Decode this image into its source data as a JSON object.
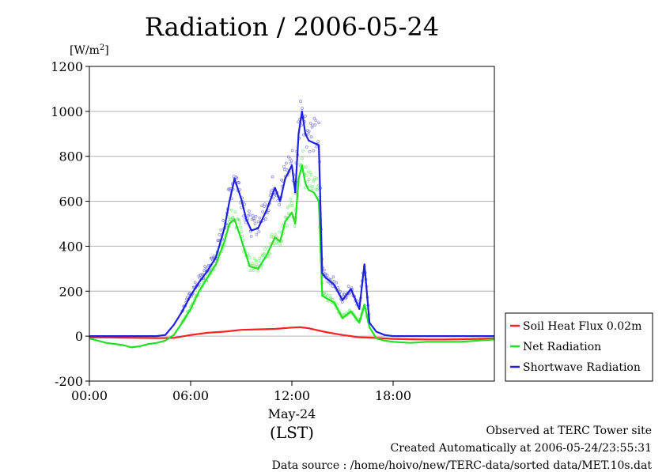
{
  "colors": {
    "soil_heat_flux": "#ff2020",
    "net_radiation": "#22e022",
    "shortwave_radiation": "#2020e0",
    "shortwave_scatter": "#8080ee",
    "net_scatter": "#80ee80",
    "grid": "#b0b0b0"
  },
  "chart_data": {
    "type": "line",
    "title": "Radiation / 2006-05-24",
    "ylabel_unit": "[W/m",
    "ylabel_sup": "2",
    "ylabel_close": "]",
    "xlabel_date": "May-24",
    "xlabel_tz": "(LST)",
    "ylim": [
      -200,
      1200
    ],
    "xlim_hours": [
      0,
      24
    ],
    "y_ticks": [
      "-200",
      "0",
      "200",
      "400",
      "600",
      "800",
      "1000",
      "1200"
    ],
    "y_tick_values": [
      -200,
      0,
      200,
      400,
      600,
      800,
      1000,
      1200
    ],
    "x_ticks": [
      "00:00",
      "06:00",
      "12:00",
      "18:00"
    ],
    "x_tick_values": [
      0,
      6,
      12,
      18
    ],
    "grid": true,
    "legend_position": "right",
    "series": [
      {
        "name": "Soil Heat Flux 0.02m",
        "x_hours": [
          0,
          1,
          2,
          3,
          4,
          5,
          6,
          7,
          8,
          9,
          10,
          11,
          12,
          12.5,
          13,
          14,
          15,
          16,
          17,
          18,
          19,
          20,
          21,
          22,
          23,
          24
        ],
        "values": [
          -5,
          -6,
          -7,
          -8,
          -9,
          -8,
          5,
          15,
          20,
          28,
          30,
          32,
          38,
          40,
          35,
          18,
          5,
          -5,
          -8,
          -12,
          -14,
          -15,
          -15,
          -14,
          -12,
          -10
        ]
      },
      {
        "name": "Net Radiation",
        "x_hours": [
          0,
          1,
          2,
          2.5,
          3,
          3.5,
          4,
          4.5,
          5,
          5.5,
          6,
          6.5,
          7,
          7.5,
          8,
          8.3,
          8.6,
          9,
          9.5,
          10,
          10.5,
          11,
          11.3,
          11.6,
          12,
          12.2,
          12.4,
          12.6,
          12.8,
          13,
          13.3,
          13.6,
          13.8,
          14,
          14.5,
          15,
          15.5,
          16,
          16.3,
          16.6,
          17,
          17.5,
          18,
          19,
          20,
          21,
          22,
          23,
          24
        ],
        "values": [
          -10,
          -30,
          -40,
          -50,
          -45,
          -35,
          -30,
          -20,
          5,
          60,
          120,
          200,
          260,
          320,
          420,
          500,
          520,
          430,
          310,
          300,
          360,
          440,
          420,
          510,
          550,
          500,
          700,
          760,
          680,
          650,
          640,
          600,
          180,
          170,
          150,
          80,
          110,
          60,
          140,
          40,
          -10,
          -20,
          -25,
          -30,
          -25,
          -25,
          -25,
          -20,
          -15
        ]
      },
      {
        "name": "Shortwave Radiation",
        "x_hours": [
          0,
          1,
          2,
          3,
          4,
          4.5,
          5,
          5.5,
          6,
          6.5,
          7,
          7.5,
          8,
          8.3,
          8.6,
          9,
          9.3,
          9.6,
          10,
          10.5,
          11,
          11.3,
          11.6,
          12,
          12.2,
          12.4,
          12.6,
          12.8,
          13,
          13.3,
          13.6,
          13.8,
          14,
          14.5,
          15,
          15.5,
          16,
          16.3,
          16.6,
          17,
          17.5,
          18,
          19,
          20,
          21,
          22,
          23,
          24
        ],
        "values": [
          0,
          0,
          0,
          0,
          0,
          5,
          50,
          110,
          180,
          240,
          290,
          350,
          480,
          600,
          700,
          610,
          520,
          470,
          480,
          560,
          660,
          600,
          700,
          760,
          640,
          900,
          1000,
          900,
          870,
          860,
          850,
          280,
          260,
          230,
          160,
          210,
          120,
          320,
          60,
          20,
          5,
          0,
          0,
          0,
          0,
          0,
          0,
          0
        ]
      }
    ]
  },
  "footer": {
    "line1": "Observed at TERC Tower site",
    "line2": "Created Automatically at 2006-05-24/23:55:31",
    "line3": "Data source : /home/hoivo/new/TERC-data/sorted  data/MET.10s.dat"
  }
}
